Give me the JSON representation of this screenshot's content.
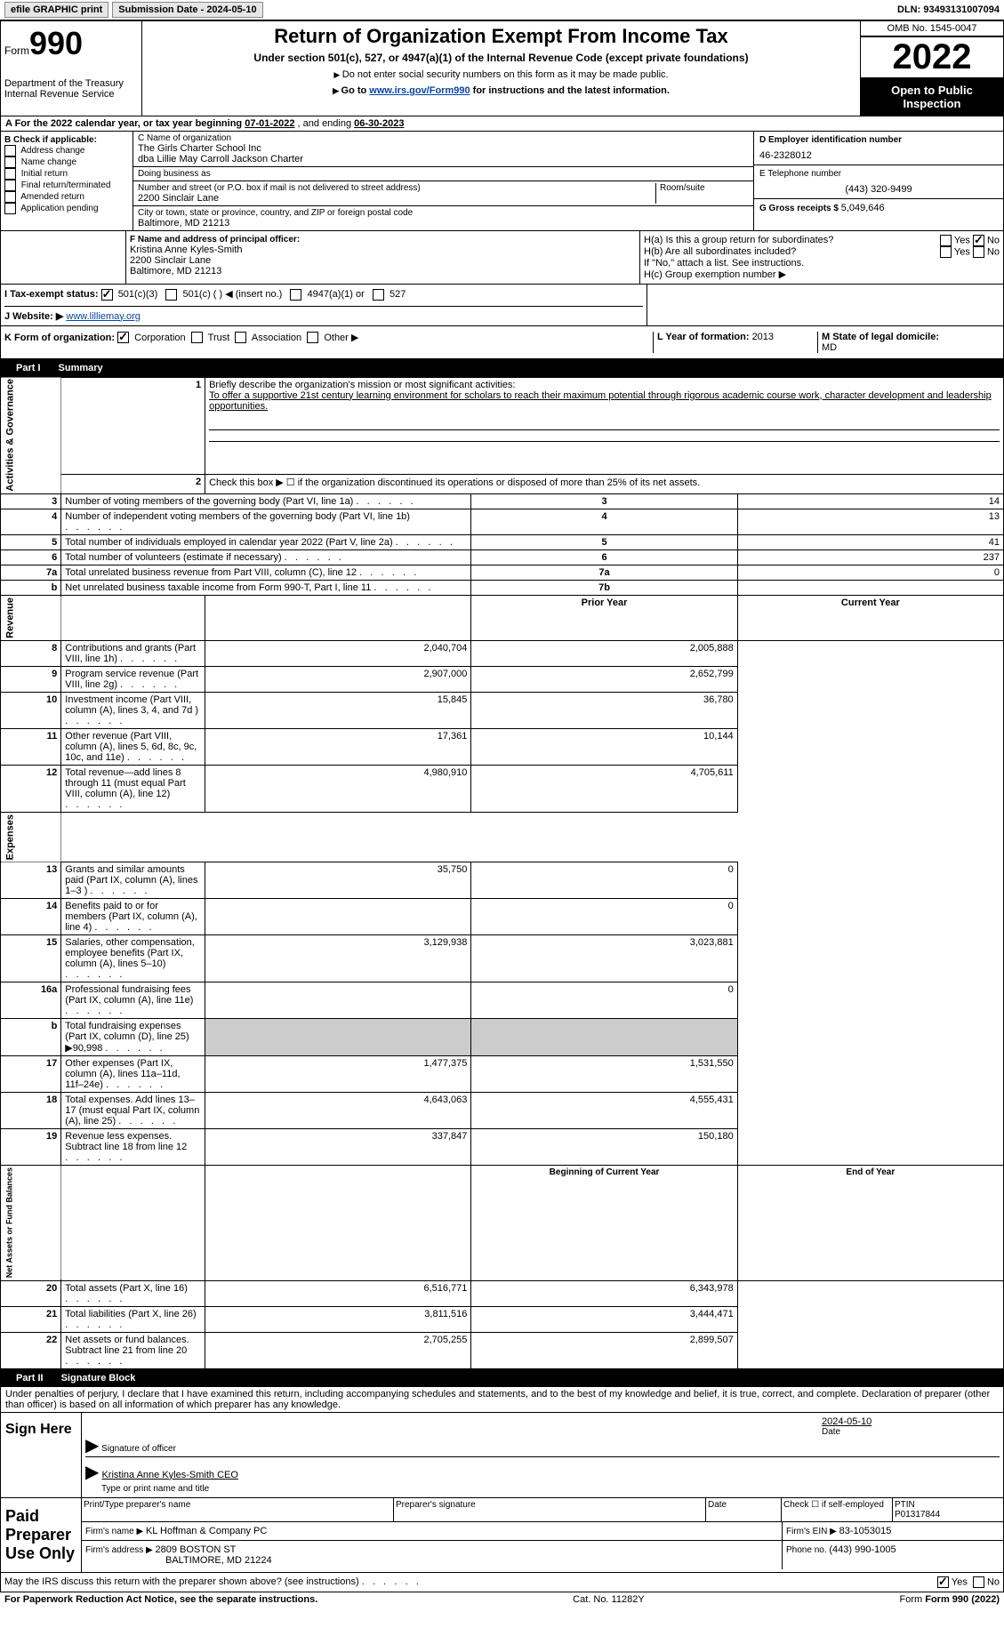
{
  "topBar": {
    "efile": "efile GRAPHIC print",
    "submission": "Submission Date - 2024-05-10",
    "dln": "DLN: 93493131007094"
  },
  "header": {
    "formWord": "Form",
    "formNum": "990",
    "dept": "Department of the Treasury",
    "irs": "Internal Revenue Service",
    "title": "Return of Organization Exempt From Income Tax",
    "sub1": "Under section 501(c), 527, or 4947(a)(1) of the Internal Revenue Code (except private foundations)",
    "sub2": "Do not enter social security numbers on this form as it may be made public.",
    "sub3a": "Go to ",
    "sub3link": "www.irs.gov/Form990",
    "sub3b": " for instructions and the latest information.",
    "omb": "OMB No. 1545-0047",
    "year": "2022",
    "openPublic": "Open to Public Inspection"
  },
  "sectionA": {
    "label": "A For the 2022 calendar year, or tax year beginning ",
    "begin": "07-01-2022",
    "mid": " , and ending ",
    "end": "06-30-2023"
  },
  "sectionB": {
    "label": "B Check if applicable:",
    "opts": [
      "Address change",
      "Name change",
      "Initial return",
      "Final return/terminated",
      "Amended return",
      "Application pending"
    ]
  },
  "sectionC": {
    "nameLabel": "C Name of organization",
    "name1": "The Girls Charter School Inc",
    "name2": "dba Lillie May Carroll Jackson Charter",
    "dba": "Doing business as",
    "streetLabel": "Number and street (or P.O. box if mail is not delivered to street address)",
    "street": "2200 Sinclair Lane",
    "room": "Room/suite",
    "cityLabel": "City or town, state or province, country, and ZIP or foreign postal code",
    "city": "Baltimore, MD  21213"
  },
  "sectionD": {
    "label": "D Employer identification number",
    "val": "46-2328012"
  },
  "sectionE": {
    "label": "E Telephone number",
    "val": "(443) 320-9499"
  },
  "sectionG": {
    "label": "G Gross receipts $ ",
    "val": "5,049,646"
  },
  "sectionF": {
    "label": "F  Name and address of principal officer:",
    "name": "Kristina Anne Kyles-Smith",
    "street": "2200 Sinclair Lane",
    "city": "Baltimore, MD  21213"
  },
  "sectionH": {
    "ha": "H(a)  Is this a group return for subordinates?",
    "hb": "H(b)  Are all subordinates included?",
    "hbNote": "If \"No,\" attach a list. See instructions.",
    "hc": "H(c)  Group exemption number ▶"
  },
  "sectionI": {
    "label": "I  Tax-exempt status:",
    "o1": "501(c)(3)",
    "o2": "501(c) (  ) ◀ (insert no.)",
    "o3": "4947(a)(1) or",
    "o4": "527"
  },
  "sectionJ": {
    "label": "J  Website: ▶",
    "val": "  www.lilliemay.org"
  },
  "sectionK": {
    "label": "K Form of organization:",
    "o1": "Corporation",
    "o2": "Trust",
    "o3": "Association",
    "o4": "Other ▶"
  },
  "sectionL": {
    "label": "L Year of formation: ",
    "val": "2013"
  },
  "sectionM": {
    "label": "M State of legal domicile: ",
    "val": "MD"
  },
  "part1": {
    "num": "Part I",
    "title": "Summary"
  },
  "summary": {
    "q1": "Briefly describe the organization's mission or most significant activities:",
    "q1text": "To offer a supportive 21st century learning environment for scholars to reach their maximum potential through rigorous academic course work, character development and leadership opportunities.",
    "q2": "Check this box ▶ ☐  if the organization discontinued its operations or disposed of more than 25% of its net assets.",
    "lines": [
      {
        "n": "3",
        "t": "Number of voting members of the governing body (Part VI, line 1a)",
        "box": "3",
        "v": "14"
      },
      {
        "n": "4",
        "t": "Number of independent voting members of the governing body (Part VI, line 1b)",
        "box": "4",
        "v": "13"
      },
      {
        "n": "5",
        "t": "Total number of individuals employed in calendar year 2022 (Part V, line 2a)",
        "box": "5",
        "v": "41"
      },
      {
        "n": "6",
        "t": "Total number of volunteers (estimate if necessary)",
        "box": "6",
        "v": "237"
      },
      {
        "n": "7a",
        "t": "Total unrelated business revenue from Part VIII, column (C), line 12",
        "box": "7a",
        "v": "0"
      },
      {
        "n": "b",
        "t": "Net unrelated business taxable income from Form 990-T, Part I, line 11",
        "box": "7b",
        "v": ""
      }
    ],
    "colHeaders": {
      "prior": "Prior Year",
      "current": "Current Year"
    },
    "revenue": [
      {
        "n": "8",
        "t": "Contributions and grants (Part VIII, line 1h)",
        "p": "2,040,704",
        "c": "2,005,888"
      },
      {
        "n": "9",
        "t": "Program service revenue (Part VIII, line 2g)",
        "p": "2,907,000",
        "c": "2,652,799"
      },
      {
        "n": "10",
        "t": "Investment income (Part VIII, column (A), lines 3, 4, and 7d )",
        "p": "15,845",
        "c": "36,780"
      },
      {
        "n": "11",
        "t": "Other revenue (Part VIII, column (A), lines 5, 6d, 8c, 9c, 10c, and 11e)",
        "p": "17,361",
        "c": "10,144"
      },
      {
        "n": "12",
        "t": "Total revenue—add lines 8 through 11 (must equal Part VIII, column (A), line 12)",
        "p": "4,980,910",
        "c": "4,705,611"
      }
    ],
    "expenses": [
      {
        "n": "13",
        "t": "Grants and similar amounts paid (Part IX, column (A), lines 1–3 )",
        "p": "35,750",
        "c": "0"
      },
      {
        "n": "14",
        "t": "Benefits paid to or for members (Part IX, column (A), line 4)",
        "p": "",
        "c": "0"
      },
      {
        "n": "15",
        "t": "Salaries, other compensation, employee benefits (Part IX, column (A), lines 5–10)",
        "p": "3,129,938",
        "c": "3,023,881"
      },
      {
        "n": "16a",
        "t": "Professional fundraising fees (Part IX, column (A), line 11e)",
        "p": "",
        "c": "0"
      },
      {
        "n": "b",
        "t": "Total fundraising expenses (Part IX, column (D), line 25) ▶90,998",
        "p": "shaded",
        "c": "shaded"
      },
      {
        "n": "17",
        "t": "Other expenses (Part IX, column (A), lines 11a–11d, 11f–24e)",
        "p": "1,477,375",
        "c": "1,531,550"
      },
      {
        "n": "18",
        "t": "Total expenses. Add lines 13–17 (must equal Part IX, column (A), line 25)",
        "p": "4,643,063",
        "c": "4,555,431"
      },
      {
        "n": "19",
        "t": "Revenue less expenses. Subtract line 18 from line 12",
        "p": "337,847",
        "c": "150,180"
      }
    ],
    "balHeaders": {
      "begin": "Beginning of Current Year",
      "end": "End of Year"
    },
    "balances": [
      {
        "n": "20",
        "t": "Total assets (Part X, line 16)",
        "p": "6,516,771",
        "c": "6,343,978"
      },
      {
        "n": "21",
        "t": "Total liabilities (Part X, line 26)",
        "p": "3,811,516",
        "c": "3,444,471"
      },
      {
        "n": "22",
        "t": "Net assets or fund balances. Subtract line 21 from line 20",
        "p": "2,705,255",
        "c": "2,899,507"
      }
    ],
    "vertLabels": {
      "gov": "Activities & Governance",
      "rev": "Revenue",
      "exp": "Expenses",
      "net": "Net Assets or Fund Balances"
    }
  },
  "part2": {
    "num": "Part II",
    "title": "Signature Block"
  },
  "sig": {
    "penalty": "Under penalties of perjury, I declare that I have examined this return, including accompanying schedules and statements, and to the best of my knowledge and belief, it is true, correct, and complete. Declaration of preparer (other than officer) is based on all information of which preparer has any knowledge.",
    "signHere": "Sign Here",
    "sigOfficer": "Signature of officer",
    "date": "Date",
    "dateVal": "2024-05-10",
    "nameTitle": "Kristina Anne Kyles-Smith  CEO",
    "typeName": "Type or print name and title",
    "paid": "Paid Preparer Use Only",
    "printName": "Print/Type preparer's name",
    "prepSig": "Preparer's signature",
    "checkSelf": "Check ☐ if self-employed",
    "ptin": "PTIN",
    "ptinVal": "P01317844",
    "firmName": "Firm's name   ▶ ",
    "firmNameVal": "KL Hoffman & Company PC",
    "firmEin": "Firm's EIN ▶ ",
    "firmEinVal": "83-1053015",
    "firmAddr": "Firm's address ▶ ",
    "firmAddrVal": "2809 BOSTON ST",
    "firmCity": "BALTIMORE, MD  21224",
    "phone": "Phone no. ",
    "phoneVal": "(443) 990-1005"
  },
  "bottom": {
    "discuss": "May the IRS discuss this return with the preparer shown above? (see instructions)",
    "paperwork": "For Paperwork Reduction Act Notice, see the separate instructions.",
    "cat": "Cat. No. 11282Y",
    "formRef": "Form 990 (2022)"
  }
}
